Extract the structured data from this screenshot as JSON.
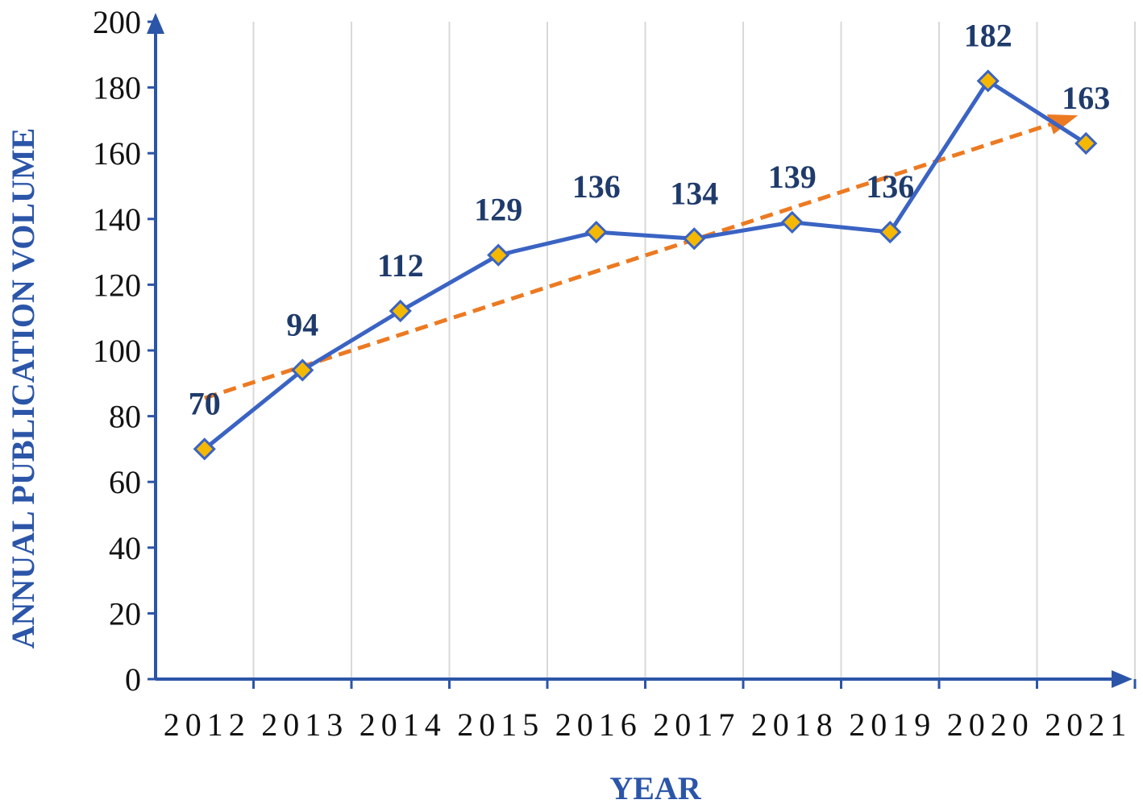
{
  "chart_data": {
    "type": "line",
    "title": "",
    "xlabel": "YEAR",
    "ylabel": "ANNUAL PUBLICATION VOLUME",
    "categories": [
      "2012",
      "2013",
      "2014",
      "2015",
      "2016",
      "2017",
      "2018",
      "2019",
      "2020",
      "2021"
    ],
    "series": [
      {
        "values": [
          70,
          94,
          112,
          129,
          136,
          134,
          139,
          136,
          182,
          163
        ],
        "data_labels": [
          "70",
          "94",
          "112",
          "129",
          "136",
          "134",
          "139",
          "136",
          "182",
          "163"
        ],
        "marker": "diamond",
        "color": "#3a63c3",
        "marker_color": "#f5b800"
      }
    ],
    "trendline": {
      "type": "linear",
      "style": "dashed",
      "arrow": true,
      "color": "#ec7a22",
      "start_value": 85.5,
      "end_value": 171.5
    },
    "ylim": [
      0,
      200
    ],
    "yticks": [
      "0",
      "20",
      "40",
      "60",
      "80",
      "100",
      "120",
      "140",
      "160",
      "180",
      "200"
    ],
    "grid": {
      "vertical": true,
      "horizontal": false,
      "color": "#d9d9d9"
    },
    "axis_color": "#2b55a8",
    "legend": "none"
  }
}
